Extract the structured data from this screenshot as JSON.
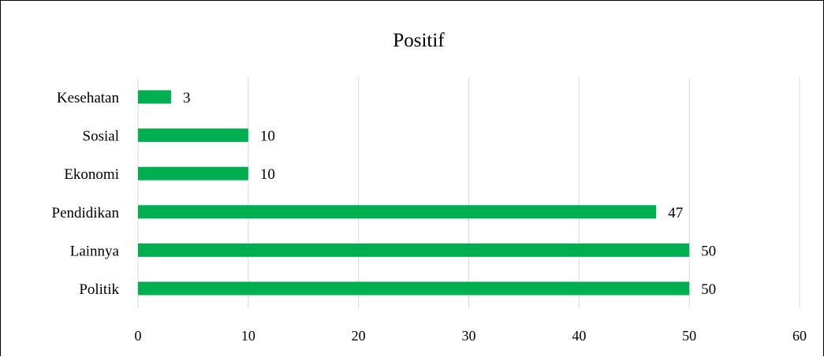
{
  "chart_data": {
    "type": "bar",
    "orientation": "horizontal",
    "title": "Positif",
    "xlabel": "",
    "ylabel": "",
    "categories": [
      "Kesehatan",
      "Sosial",
      "Ekonomi",
      "Pendidikan",
      "Lainnya",
      "Politik"
    ],
    "values": [
      3,
      10,
      10,
      47,
      50,
      50
    ],
    "xlim": [
      0,
      60
    ],
    "xticks": [
      0,
      10,
      20,
      30,
      40,
      50,
      60
    ],
    "grid": "vertical",
    "legend": "none",
    "bar_color": "#00b050",
    "data_labels": true
  }
}
